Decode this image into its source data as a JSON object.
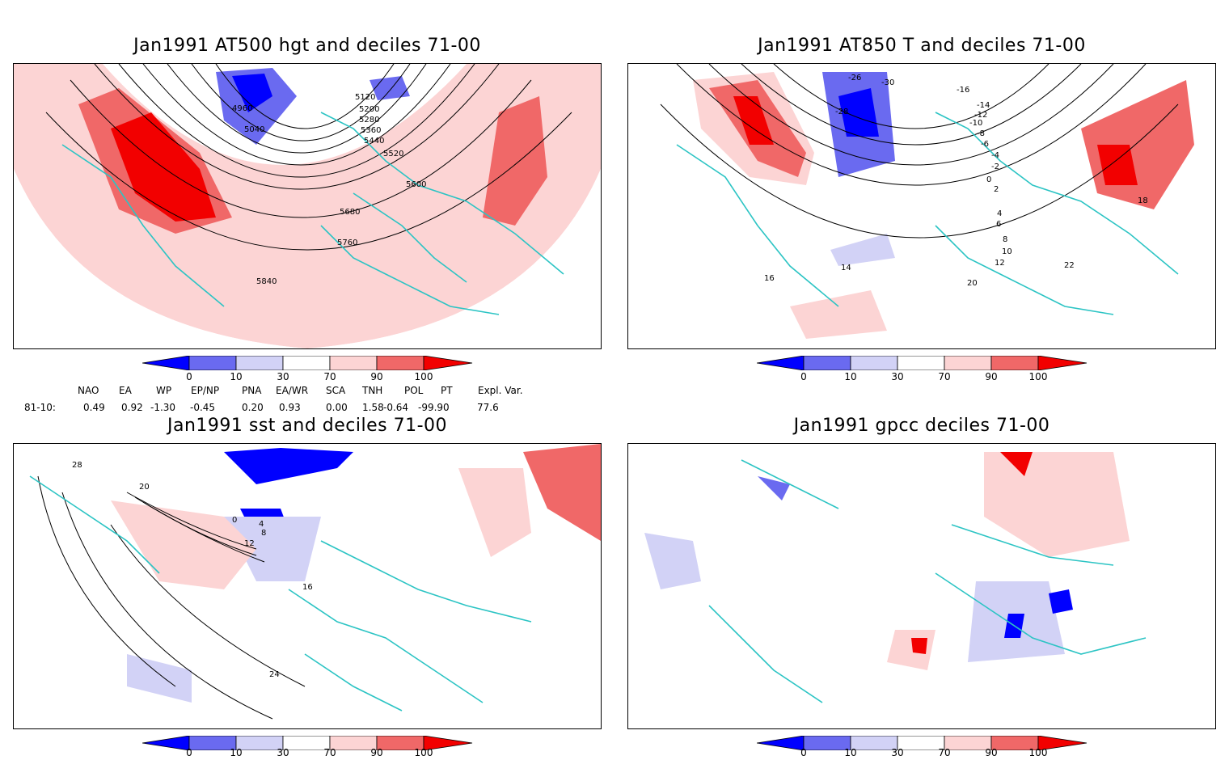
{
  "colors": {
    "deep_blue": "#0000ff",
    "mid_blue": "#6a6af0",
    "light_blue": "#d2d2f6",
    "light_red": "#fcd4d4",
    "mid_red": "#f06868",
    "deep_red": "#f20000",
    "coast": "#2cc4c4"
  },
  "panels": [
    {
      "title": "Jan1991 AT500 hgt and deciles 71-00",
      "labels": [
        "4960",
        "5040",
        "5120",
        "5200",
        "5280",
        "5360",
        "5440",
        "5520",
        "5600",
        "5680",
        "5760",
        "5840"
      ]
    },
    {
      "title": "Jan1991 AT850 T and deciles 71-00",
      "labels": [
        "-26",
        "-30",
        "-16",
        "-28",
        "-14",
        "-12",
        "-10",
        "-8",
        "-6",
        "-4",
        "-2",
        "0",
        "2",
        "4",
        "6",
        "8",
        "10",
        "12",
        "14",
        "16",
        "18",
        "20",
        "22"
      ]
    },
    {
      "title": "Jan1991 sst and deciles 71-00",
      "labels": [
        "28",
        "20",
        "0",
        "4",
        "8",
        "12",
        "16",
        "24"
      ]
    },
    {
      "title": "Jan1991 gpcc deciles 71-00",
      "labels": []
    }
  ],
  "colorbar": {
    "ticks": [
      "0",
      "10",
      "30",
      "70",
      "90",
      "100"
    ]
  },
  "indices": {
    "headers": [
      "NAO",
      "EA",
      "WP",
      "EP/NP",
      "PNA",
      "EA/WR",
      "SCA",
      "TNH",
      "POL",
      "PT",
      "Expl. Var."
    ],
    "row_label": "81-10:",
    "values": [
      "0.49",
      "0.92",
      "-1.30",
      "-0.45",
      "0.20",
      "0.93",
      "0.00",
      "1.58",
      "-0.64",
      "-99.90",
      "77.6"
    ]
  }
}
